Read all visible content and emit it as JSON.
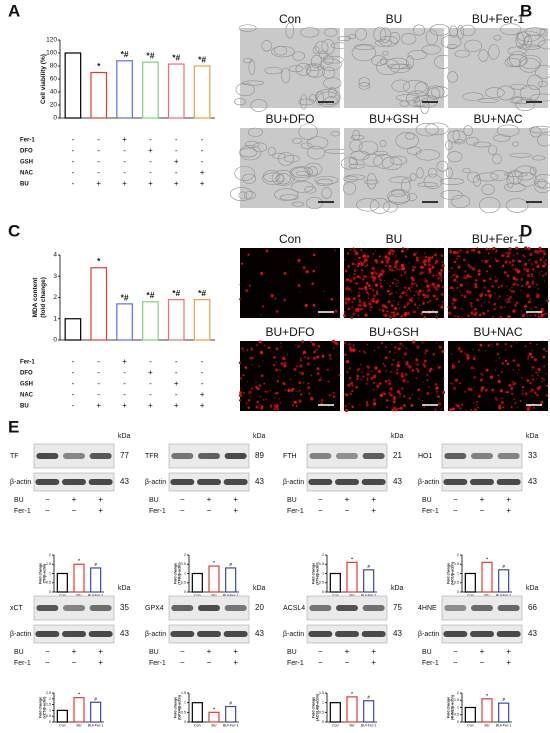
{
  "panel_letters": [
    "A",
    "B",
    "C",
    "D",
    "E"
  ],
  "chart_data": [
    {
      "type": "bar",
      "ylabel": [
        "Cell viability (%)"
      ],
      "ylim": [
        0,
        120
      ],
      "yticks": [
        0,
        20,
        40,
        60,
        80,
        100,
        120
      ],
      "values": [
        100,
        70,
        88,
        86,
        83,
        80
      ],
      "colors": [
        "#000000",
        "#e53935",
        "#5b6ee8",
        "#7fd17f",
        "#f06a7a",
        "#f0a040"
      ],
      "annotations": [
        null,
        "*",
        "*#",
        "*#",
        "*#",
        "*#"
      ],
      "treatments": [
        {
          "label": "Fer-1",
          "signs": [
            "-",
            "-",
            "+",
            "-",
            "-",
            "-"
          ]
        },
        {
          "label": "DFO",
          "signs": [
            "-",
            "-",
            "-",
            "+",
            "-",
            "-"
          ]
        },
        {
          "label": "GSH",
          "signs": [
            "-",
            "-",
            "-",
            "-",
            "+",
            "-"
          ]
        },
        {
          "label": "NAC",
          "signs": [
            "-",
            "-",
            "-",
            "-",
            "-",
            "+"
          ]
        },
        {
          "label": "BU",
          "signs": [
            "-",
            "+",
            "+",
            "+",
            "+",
            "+"
          ]
        }
      ]
    },
    {
      "type": "bar",
      "ylabel": [
        "MDA content",
        "(fold change)"
      ],
      "ylim": [
        0,
        4
      ],
      "yticks": [
        0,
        1,
        2,
        3,
        4
      ],
      "values": [
        1.0,
        3.4,
        1.7,
        1.8,
        1.9,
        1.9
      ],
      "colors": [
        "#000000",
        "#e53935",
        "#5b6ee8",
        "#7fd17f",
        "#f06a7a",
        "#f0a040"
      ],
      "annotations": [
        null,
        "*",
        "*#",
        "*#",
        "*#",
        "*#"
      ],
      "treatments": [
        {
          "label": "Fer-1",
          "signs": [
            "-",
            "-",
            "+",
            "-",
            "-",
            "-"
          ]
        },
        {
          "label": "DFO",
          "signs": [
            "-",
            "-",
            "-",
            "+",
            "-",
            "-"
          ]
        },
        {
          "label": "GSH",
          "signs": [
            "-",
            "-",
            "-",
            "-",
            "+",
            "-"
          ]
        },
        {
          "label": "NAC",
          "signs": [
            "-",
            "-",
            "-",
            "-",
            "-",
            "+"
          ]
        },
        {
          "label": "BU",
          "signs": [
            "-",
            "+",
            "+",
            "+",
            "+",
            "+"
          ]
        }
      ]
    },
    {
      "type": "bar",
      "ylabel": [
        "Fold change",
        "(TF/β-actin)"
      ],
      "ylim": [
        0,
        2
      ],
      "yticks": [
        0,
        0.5,
        1,
        1.5,
        2
      ],
      "categories": [
        "Con",
        "BU",
        "BU+Fer-1"
      ],
      "values": [
        1.0,
        1.5,
        1.3
      ],
      "colors": [
        "#000000",
        "#e53935",
        "#3949ab"
      ],
      "annotations": [
        null,
        "*",
        "#"
      ]
    },
    {
      "type": "bar",
      "ylabel": [
        "Fold change",
        "(TFR/β-actin)"
      ],
      "ylim": [
        0,
        2
      ],
      "yticks": [
        0,
        0.5,
        1,
        1.5,
        2
      ],
      "categories": [
        "Con",
        "BU",
        "BU+Fer-1"
      ],
      "values": [
        1.0,
        1.4,
        1.3
      ],
      "colors": [
        "#000000",
        "#e53935",
        "#3949ab"
      ],
      "annotations": [
        null,
        "*",
        "#"
      ]
    },
    {
      "type": "bar",
      "ylabel": [
        "Fold change",
        "(FTH/β-actin)"
      ],
      "ylim": [
        0,
        2
      ],
      "yticks": [
        0,
        0.5,
        1,
        1.5,
        2
      ],
      "categories": [
        "Con",
        "BU",
        "BU+Fer-1"
      ],
      "values": [
        1.0,
        1.6,
        1.2
      ],
      "colors": [
        "#000000",
        "#e53935",
        "#3949ab"
      ],
      "annotations": [
        null,
        "*",
        "#"
      ]
    },
    {
      "type": "bar",
      "ylabel": [
        "Fold change",
        "(HO1/β-actin)"
      ],
      "ylim": [
        0,
        2
      ],
      "yticks": [
        0,
        0.5,
        1,
        1.5,
        2
      ],
      "categories": [
        "Con",
        "BU",
        "BU+Fer-1"
      ],
      "values": [
        1.0,
        1.6,
        1.2
      ],
      "colors": [
        "#000000",
        "#e53935",
        "#3949ab"
      ],
      "annotations": [
        null,
        "*",
        "#"
      ]
    },
    {
      "type": "bar",
      "ylabel": [
        "Fold change",
        "(xCT/β-actin)"
      ],
      "ylim": [
        0,
        2.5
      ],
      "yticks": [
        0,
        0.5,
        1,
        1.5,
        2,
        2.5
      ],
      "categories": [
        "Con",
        "BU",
        "BU+Fer-1"
      ],
      "values": [
        1.0,
        2.1,
        1.7
      ],
      "colors": [
        "#000000",
        "#e53935",
        "#3949ab"
      ],
      "annotations": [
        null,
        "*",
        "#"
      ]
    },
    {
      "type": "bar",
      "ylabel": [
        "Fold change",
        "(GPX4/β-actin)"
      ],
      "ylim": [
        0,
        1.5
      ],
      "yticks": [
        0,
        0.5,
        1,
        1.5
      ],
      "categories": [
        "Con",
        "BU",
        "BU+Fer-1"
      ],
      "values": [
        1.0,
        0.5,
        0.8
      ],
      "colors": [
        "#000000",
        "#e53935",
        "#3949ab"
      ],
      "annotations": [
        null,
        "*",
        "#"
      ]
    },
    {
      "type": "bar",
      "ylabel": [
        "Fold change",
        "(ACSL4/β-actin)"
      ],
      "ylim": [
        0,
        1.5
      ],
      "yticks": [
        0,
        0.5,
        1,
        1.5
      ],
      "categories": [
        "Con",
        "BU",
        "BU+Fer-1"
      ],
      "values": [
        1.0,
        1.3,
        1.1
      ],
      "colors": [
        "#000000",
        "#e53935",
        "#3949ab"
      ],
      "annotations": [
        null,
        "*",
        "#"
      ]
    },
    {
      "type": "bar",
      "ylabel": [
        "Fold change",
        "(4HNE/β-actin)"
      ],
      "ylim": [
        0,
        2
      ],
      "yticks": [
        0,
        0.5,
        1,
        1.5,
        2
      ],
      "categories": [
        "Con",
        "BU",
        "BU+Fer-1"
      ],
      "values": [
        1.0,
        1.6,
        1.3
      ],
      "colors": [
        "#000000",
        "#e53935",
        "#3949ab"
      ],
      "annotations": [
        null,
        "*",
        "#"
      ]
    }
  ],
  "image_panels": [
    {
      "labels": [
        "Con",
        "BU",
        "BU+Fer-1",
        "BU+DFO",
        "BU+GSH",
        "BU+NAC"
      ],
      "style": "brightfield"
    },
    {
      "labels": [
        "Con",
        "BU",
        "BU+Fer-1",
        "BU+DFO",
        "BU+GSH",
        "BU+NAC"
      ],
      "style": "fluorescence"
    }
  ],
  "blots": [
    {
      "protein": "TF",
      "kda": "77"
    },
    {
      "protein": "TFR",
      "kda": "89"
    },
    {
      "protein": "FTH",
      "kda": "21"
    },
    {
      "protein": "HO1",
      "kda": "33"
    },
    {
      "protein": "xCT",
      "kda": "35"
    },
    {
      "protein": "GPX4",
      "kda": "20"
    },
    {
      "protein": "ACSL4",
      "kda": "75"
    },
    {
      "protein": "4HNE",
      "kda": "66"
    }
  ],
  "blot_kda_header": "kDa",
  "loading_control": {
    "protein": "β-actin",
    "kda": "43"
  },
  "blot_conditions": [
    {
      "label": "BU",
      "signs": [
        "−",
        "+",
        "+"
      ]
    },
    {
      "label": "Fer-1",
      "signs": [
        "−",
        "−",
        "+"
      ]
    }
  ]
}
